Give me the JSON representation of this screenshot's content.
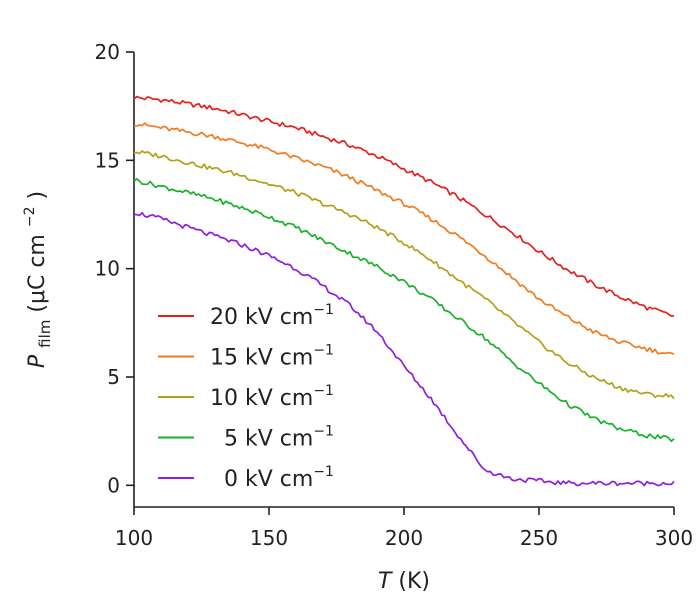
{
  "chart_data": {
    "type": "line",
    "xlabel": "T",
    "xlabel_unit": "(K)",
    "ylabel": "P",
    "ylabel_sub": "film",
    "ylabel_unit": "(μC cm",
    "ylabel_unit_sup": "−2",
    "ylabel_unit_end": ")",
    "xlim": [
      100,
      300
    ],
    "ylim": [
      -1,
      20
    ],
    "xticks": [
      100,
      150,
      200,
      250,
      300
    ],
    "yticks": [
      0,
      5,
      10,
      15,
      20
    ],
    "grid": false,
    "legend_position": "lower-left",
    "legend_unit": "kV cm",
    "legend_unit_sup": "−1",
    "x": [
      100,
      110,
      120,
      130,
      140,
      150,
      160,
      170,
      180,
      190,
      200,
      210,
      220,
      230,
      240,
      250,
      260,
      270,
      280,
      290,
      300
    ],
    "series": [
      {
        "name": "20",
        "color": "#e8201c",
        "values": [
          17.9,
          17.8,
          17.6,
          17.4,
          17.1,
          16.8,
          16.5,
          16.1,
          15.7,
          15.2,
          14.6,
          14.0,
          13.3,
          12.5,
          11.7,
          10.8,
          10.0,
          9.3,
          8.7,
          8.2,
          7.8
        ]
      },
      {
        "name": "15",
        "color": "#f07b20",
        "values": [
          16.7,
          16.5,
          16.3,
          16.1,
          15.8,
          15.5,
          15.1,
          14.7,
          14.2,
          13.6,
          13.0,
          12.3,
          11.5,
          10.6,
          9.6,
          8.6,
          7.8,
          7.1,
          6.6,
          6.3,
          6.0
        ]
      },
      {
        "name": "10",
        "color": "#b3a019",
        "values": [
          15.4,
          15.2,
          14.9,
          14.6,
          14.3,
          13.9,
          13.5,
          13.0,
          12.5,
          11.9,
          11.2,
          10.4,
          9.5,
          8.6,
          7.6,
          6.6,
          5.7,
          5.0,
          4.5,
          4.2,
          4.1
        ]
      },
      {
        "name": "5",
        "color": "#17b22a",
        "values": [
          14.1,
          13.8,
          13.5,
          13.2,
          12.8,
          12.4,
          11.9,
          11.3,
          10.7,
          10.1,
          9.4,
          8.6,
          7.7,
          6.8,
          5.7,
          4.7,
          3.8,
          3.1,
          2.6,
          2.3,
          2.1
        ]
      },
      {
        "name": "0",
        "color": "#8f1fdc",
        "values": [
          12.6,
          12.3,
          11.9,
          11.5,
          11.1,
          10.6,
          10.0,
          9.2,
          8.3,
          7.1,
          5.5,
          4.0,
          2.3,
          0.7,
          0.3,
          0.2,
          0.1,
          0.1,
          0.1,
          0.1,
          0.1
        ]
      }
    ]
  }
}
